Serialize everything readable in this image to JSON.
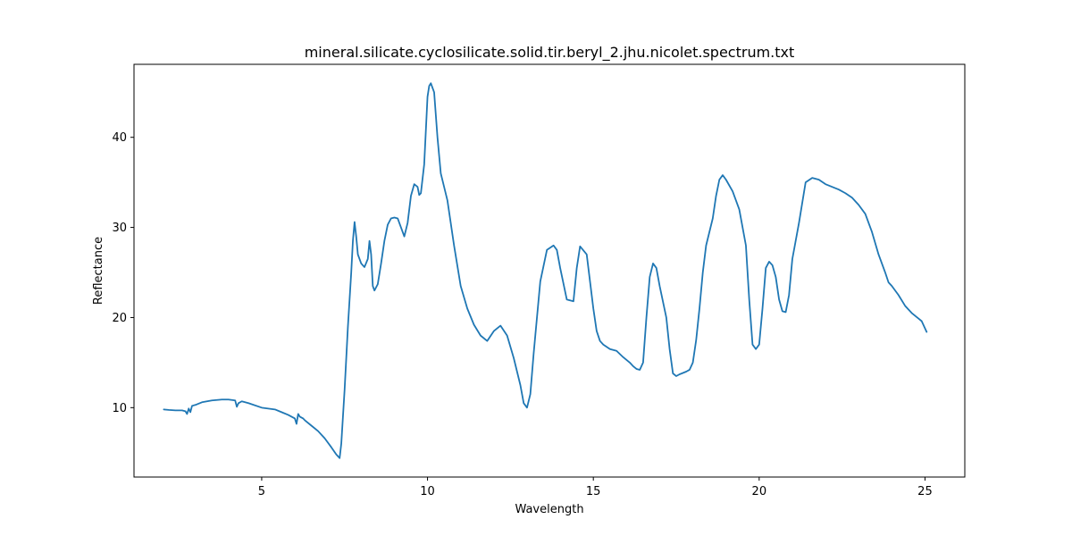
{
  "chart_data": {
    "type": "line",
    "title": "mineral.silicate.cyclosilicate.solid.tir.beryl_2.jhu.nicolet.spectrum.txt",
    "xlabel": "Wavelength",
    "ylabel": "Reflectance",
    "xlim": [
      1.15,
      26.2
    ],
    "ylim": [
      2.3,
      48.1
    ],
    "x_ticks": [
      5,
      10,
      15,
      20,
      25
    ],
    "y_ticks": [
      10,
      20,
      30,
      40
    ],
    "grid": false,
    "legend": "none",
    "series": [
      {
        "color": "#1f77b4",
        "x": [
          2.05,
          2.2,
          2.4,
          2.6,
          2.7,
          2.75,
          2.8,
          2.85,
          2.9,
          3.0,
          3.2,
          3.5,
          3.8,
          4.0,
          4.2,
          4.25,
          4.3,
          4.4,
          4.6,
          5.0,
          5.4,
          5.6,
          5.8,
          6.0,
          6.05,
          6.1,
          6.15,
          6.2,
          6.25,
          6.3,
          6.5,
          6.7,
          6.9,
          7.1,
          7.25,
          7.35,
          7.4,
          7.5,
          7.6,
          7.7,
          7.75,
          7.8,
          7.85,
          7.9,
          8.0,
          8.1,
          8.2,
          8.25,
          8.3,
          8.35,
          8.4,
          8.5,
          8.6,
          8.7,
          8.8,
          8.9,
          9.0,
          9.1,
          9.2,
          9.3,
          9.4,
          9.5,
          9.6,
          9.7,
          9.75,
          9.8,
          9.9,
          10.0,
          10.05,
          10.1,
          10.2,
          10.3,
          10.4,
          10.5,
          10.6,
          10.7,
          10.8,
          11.0,
          11.2,
          11.4,
          11.6,
          11.8,
          12.0,
          12.2,
          12.4,
          12.6,
          12.8,
          12.9,
          13.0,
          13.1,
          13.2,
          13.4,
          13.6,
          13.8,
          13.9,
          14.0,
          14.2,
          14.4,
          14.5,
          14.6,
          14.8,
          14.9,
          15.0,
          15.1,
          15.2,
          15.3,
          15.5,
          15.7,
          15.9,
          16.1,
          16.2,
          16.3,
          16.4,
          16.5,
          16.6,
          16.7,
          16.8,
          16.9,
          17.0,
          17.2,
          17.3,
          17.4,
          17.5,
          17.6,
          17.8,
          17.9,
          18.0,
          18.1,
          18.2,
          18.3,
          18.4,
          18.5,
          18.6,
          18.7,
          18.8,
          18.9,
          19.0,
          19.2,
          19.4,
          19.6,
          19.7,
          19.8,
          19.9,
          20.0,
          20.1,
          20.2,
          20.3,
          20.4,
          20.5,
          20.6,
          20.7,
          20.8,
          20.9,
          21.0,
          21.2,
          21.4,
          21.6,
          21.8,
          22.0,
          22.2,
          22.4,
          22.6,
          22.8,
          23.0,
          23.2,
          23.4,
          23.6,
          23.8,
          23.9,
          24.0,
          24.2,
          24.4,
          24.6,
          24.8,
          24.9,
          25.05
        ],
        "y": [
          9.8,
          9.75,
          9.7,
          9.7,
          9.6,
          9.3,
          9.9,
          9.5,
          10.2,
          10.3,
          10.6,
          10.8,
          10.9,
          10.9,
          10.8,
          10.1,
          10.5,
          10.7,
          10.5,
          10.0,
          9.8,
          9.5,
          9.2,
          8.8,
          8.2,
          9.3,
          9.0,
          8.9,
          8.8,
          8.6,
          8.0,
          7.4,
          6.6,
          5.6,
          4.8,
          4.4,
          6.0,
          12.0,
          19.0,
          25.0,
          28.5,
          30.6,
          29.0,
          27.0,
          26.0,
          25.6,
          26.5,
          28.5,
          27.0,
          23.5,
          23.0,
          23.7,
          26.0,
          28.5,
          30.3,
          31.0,
          31.1,
          31.0,
          30.0,
          29.0,
          30.5,
          33.5,
          34.8,
          34.5,
          33.6,
          33.8,
          37.0,
          44.5,
          45.7,
          46.0,
          45.0,
          40.0,
          36.0,
          34.5,
          33.0,
          30.5,
          28.0,
          23.5,
          21.0,
          19.2,
          18.0,
          17.4,
          18.5,
          19.1,
          18.0,
          15.5,
          12.5,
          10.5,
          10.0,
          11.5,
          16.0,
          24.0,
          27.5,
          28.0,
          27.5,
          25.5,
          22.0,
          21.8,
          25.5,
          27.9,
          27.0,
          24.0,
          21.0,
          18.5,
          17.4,
          17.0,
          16.5,
          16.3,
          15.6,
          15.0,
          14.6,
          14.3,
          14.2,
          15.0,
          20.0,
          24.5,
          26.0,
          25.5,
          23.5,
          20.0,
          16.5,
          13.8,
          13.5,
          13.7,
          14.0,
          14.2,
          15.0,
          17.5,
          21.0,
          25.0,
          28.0,
          29.5,
          31.0,
          33.5,
          35.3,
          35.8,
          35.3,
          34.0,
          32.0,
          28.0,
          22.0,
          17.0,
          16.5,
          17.0,
          21.0,
          25.5,
          26.2,
          25.8,
          24.5,
          22.0,
          20.7,
          20.6,
          22.5,
          26.5,
          30.5,
          35.0,
          35.5,
          35.3,
          34.8,
          34.5,
          34.2,
          33.8,
          33.3,
          32.5,
          31.5,
          29.5,
          27.0,
          25.0,
          23.9,
          23.5,
          22.5,
          21.3,
          20.5,
          19.9,
          19.6,
          18.4
        ]
      }
    ]
  }
}
